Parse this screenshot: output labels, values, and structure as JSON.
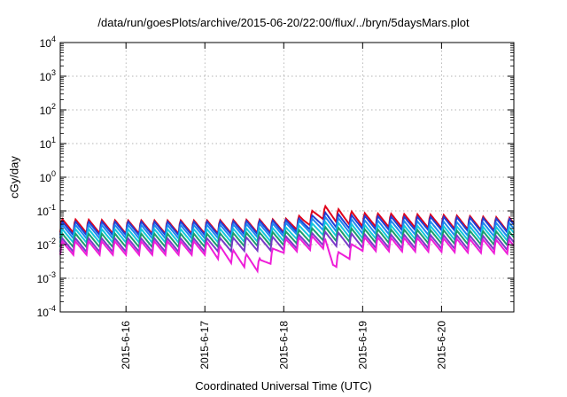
{
  "chart_data": {
    "type": "line",
    "title": "/data/run/goesPlots/archive/2015-06-20/22:00/flux/../bryn/5daysMars.plot",
    "xlabel": "Coordinated Universal Time (UTC)",
    "ylabel": "cGy/day",
    "y_scale": "log",
    "ylim": [
      0.0001,
      10000
    ],
    "xlim": [
      "2015-06-15 04:00",
      "2015-06-20 22:00"
    ],
    "grid": true,
    "legend": "none",
    "y_ticks": [
      {
        "base": "10",
        "exp": "-4",
        "value": 0.0001
      },
      {
        "base": "10",
        "exp": "-3",
        "value": 0.001
      },
      {
        "base": "10",
        "exp": "-2",
        "value": 0.01
      },
      {
        "base": "10",
        "exp": "-1",
        "value": 0.1
      },
      {
        "base": "10",
        "exp": "0",
        "value": 1
      },
      {
        "base": "10",
        "exp": "1",
        "value": 10
      },
      {
        "base": "10",
        "exp": "2",
        "value": 100
      },
      {
        "base": "10",
        "exp": "3",
        "value": 1000
      },
      {
        "base": "10",
        "exp": "4",
        "value": 10000
      }
    ],
    "x_ticks": [
      {
        "label": "2015-6-16",
        "x": "2015-06-16 00:00"
      },
      {
        "label": "2015-6-17",
        "x": "2015-06-17 00:00"
      },
      {
        "label": "2015-6-18",
        "x": "2015-06-18 00:00"
      },
      {
        "label": "2015-6-19",
        "x": "2015-06-19 00:00"
      },
      {
        "label": "2015-6-20",
        "x": "2015-06-20 00:00"
      }
    ],
    "sawtooth_period_hours": 4,
    "series": [
      {
        "color": "#e0001a",
        "values": [
          {
            "x": "2015-06-15 04:00",
            "y": 0.06
          },
          {
            "x": "2015-06-16 00:00",
            "y": 0.055
          },
          {
            "x": "2015-06-17 00:00",
            "y": 0.055
          },
          {
            "x": "2015-06-18 00:00",
            "y": 0.06
          },
          {
            "x": "2015-06-18 06:00",
            "y": 0.08
          },
          {
            "x": "2015-06-18 12:00",
            "y": 0.15
          },
          {
            "x": "2015-06-18 18:00",
            "y": 0.11
          },
          {
            "x": "2015-06-19 00:00",
            "y": 0.09
          },
          {
            "x": "2015-06-19 12:00",
            "y": 0.085
          },
          {
            "x": "2015-06-20 00:00",
            "y": 0.08
          },
          {
            "x": "2015-06-20 22:00",
            "y": 0.065
          }
        ]
      },
      {
        "color": "#1f3fd6",
        "values": [
          {
            "x": "2015-06-15 04:00",
            "y": 0.05
          },
          {
            "x": "2015-06-16 00:00",
            "y": 0.05
          },
          {
            "x": "2015-06-17 00:00",
            "y": 0.05
          },
          {
            "x": "2015-06-18 00:00",
            "y": 0.055
          },
          {
            "x": "2015-06-18 06:00",
            "y": 0.065
          },
          {
            "x": "2015-06-18 12:00",
            "y": 0.095
          },
          {
            "x": "2015-06-18 18:00",
            "y": 0.08
          },
          {
            "x": "2015-06-19 00:00",
            "y": 0.075
          },
          {
            "x": "2015-06-19 12:00",
            "y": 0.07
          },
          {
            "x": "2015-06-20 00:00",
            "y": 0.07
          },
          {
            "x": "2015-06-20 22:00",
            "y": 0.06
          }
        ]
      },
      {
        "color": "#1e88f0",
        "values": [
          {
            "x": "2015-06-15 04:00",
            "y": 0.04
          },
          {
            "x": "2015-06-16 00:00",
            "y": 0.04
          },
          {
            "x": "2015-06-17 00:00",
            "y": 0.04
          },
          {
            "x": "2015-06-18 00:00",
            "y": 0.045
          },
          {
            "x": "2015-06-18 12:00",
            "y": 0.07
          },
          {
            "x": "2015-06-19 00:00",
            "y": 0.055
          },
          {
            "x": "2015-06-20 00:00",
            "y": 0.05
          },
          {
            "x": "2015-06-20 22:00",
            "y": 0.045
          }
        ]
      },
      {
        "color": "#14c8dc",
        "values": [
          {
            "x": "2015-06-15 04:00",
            "y": 0.03
          },
          {
            "x": "2015-06-16 00:00",
            "y": 0.03
          },
          {
            "x": "2015-06-17 00:00",
            "y": 0.03
          },
          {
            "x": "2015-06-18 00:00",
            "y": 0.033
          },
          {
            "x": "2015-06-18 12:00",
            "y": 0.05
          },
          {
            "x": "2015-06-19 00:00",
            "y": 0.04
          },
          {
            "x": "2015-06-20 00:00",
            "y": 0.037
          },
          {
            "x": "2015-06-20 22:00",
            "y": 0.034
          }
        ]
      },
      {
        "color": "#1a9e6e",
        "values": [
          {
            "x": "2015-06-15 04:00",
            "y": 0.022
          },
          {
            "x": "2015-06-16 00:00",
            "y": 0.022
          },
          {
            "x": "2015-06-17 00:00",
            "y": 0.022
          },
          {
            "x": "2015-06-18 00:00",
            "y": 0.025
          },
          {
            "x": "2015-06-18 12:00",
            "y": 0.035
          },
          {
            "x": "2015-06-19 00:00",
            "y": 0.03
          },
          {
            "x": "2015-06-20 00:00",
            "y": 0.028
          },
          {
            "x": "2015-06-20 22:00",
            "y": 0.025
          }
        ]
      },
      {
        "color": "#7a3bc7",
        "values": [
          {
            "x": "2015-06-15 04:00",
            "y": 0.016
          },
          {
            "x": "2015-06-16 00:00",
            "y": 0.016
          },
          {
            "x": "2015-06-17 00:00",
            "y": 0.016
          },
          {
            "x": "2015-06-18 00:00",
            "y": 0.018
          },
          {
            "x": "2015-06-18 12:00",
            "y": 0.025
          },
          {
            "x": "2015-06-19 00:00",
            "y": 0.021
          },
          {
            "x": "2015-06-20 00:00",
            "y": 0.02
          },
          {
            "x": "2015-06-20 22:00",
            "y": 0.018
          }
        ]
      },
      {
        "color": "#ee1ed8",
        "values": [
          {
            "x": "2015-06-15 04:00",
            "y": 0.013
          },
          {
            "x": "2015-06-16 00:00",
            "y": 0.013
          },
          {
            "x": "2015-06-17 00:00",
            "y": 0.013
          },
          {
            "x": "2015-06-17 17:00",
            "y": 0.004
          },
          {
            "x": "2015-06-18 00:00",
            "y": 0.015
          },
          {
            "x": "2015-06-18 12:00",
            "y": 0.02
          },
          {
            "x": "2015-06-18 15:00",
            "y": 0.005
          },
          {
            "x": "2015-06-19 00:00",
            "y": 0.017
          },
          {
            "x": "2015-06-20 00:00",
            "y": 0.016
          },
          {
            "x": "2015-06-20 22:00",
            "y": 0.014
          }
        ]
      }
    ]
  }
}
